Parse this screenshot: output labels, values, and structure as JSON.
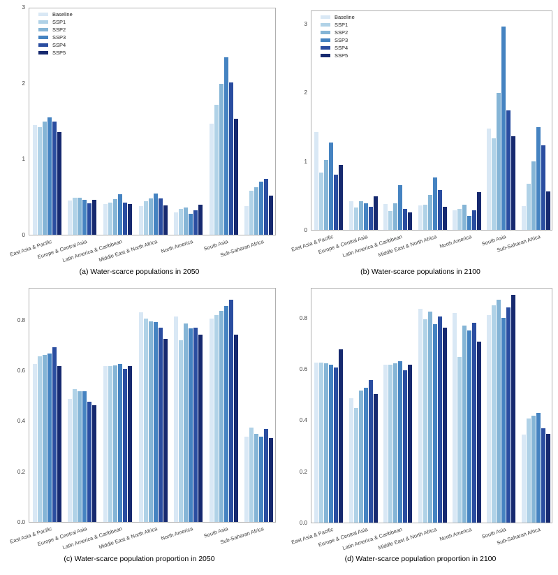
{
  "figure": {
    "background": "#ffffff",
    "axis_border_color": "#b0b0b0",
    "tick_text_color": "#3c3c3c"
  },
  "legend": {
    "position": "upper-left-inside",
    "items": [
      {
        "label": "Baseline",
        "color": "#d9e8f5"
      },
      {
        "label": "SSP1",
        "color": "#b0d2e7"
      },
      {
        "label": "SSP2",
        "color": "#85b5d6"
      },
      {
        "label": "SSP3",
        "color": "#4583c1"
      },
      {
        "label": "SSP4",
        "color": "#2a4da0"
      },
      {
        "label": "SSP5",
        "color": "#16296f"
      }
    ]
  },
  "chart_data": [
    {
      "type": "bar",
      "caption": "(a) Water-scarce populations in 2050",
      "title": "",
      "xlabel": "",
      "ylabel": "",
      "ylim": [
        0,
        3.0
      ],
      "yticks": [
        {
          "value": 0,
          "label": "0"
        },
        {
          "value": 1,
          "label": "1"
        },
        {
          "value": 2,
          "label": "2"
        },
        {
          "value": 3,
          "label": "3"
        }
      ],
      "grid": false,
      "legend_visible": true,
      "categories": [
        "East Asia & Pacific",
        "Europe & Central Asia",
        "Latin America & Caribbean",
        "Middle East & North Africa",
        "North America",
        "South Asia",
        "Sub-Saharan Africa"
      ],
      "series": [
        {
          "name": "Baseline",
          "color": "#d9e8f5",
          "values": [
            1.45,
            0.45,
            0.41,
            0.38,
            0.3,
            1.47,
            0.38
          ]
        },
        {
          "name": "SSP1",
          "color": "#b0d2e7",
          "values": [
            1.43,
            0.49,
            0.43,
            0.44,
            0.34,
            1.72,
            0.58
          ]
        },
        {
          "name": "SSP2",
          "color": "#85b5d6",
          "values": [
            1.5,
            0.49,
            0.47,
            0.48,
            0.36,
            2.0,
            0.63
          ]
        },
        {
          "name": "SSP3",
          "color": "#4583c1",
          "values": [
            1.56,
            0.46,
            0.54,
            0.55,
            0.28,
            2.35,
            0.7
          ]
        },
        {
          "name": "SSP4",
          "color": "#2a4da0",
          "values": [
            1.5,
            0.42,
            0.43,
            0.48,
            0.32,
            2.02,
            0.74
          ]
        },
        {
          "name": "SSP5",
          "color": "#16296f",
          "values": [
            1.36,
            0.46,
            0.41,
            0.39,
            0.4,
            1.54,
            0.52
          ]
        }
      ]
    },
    {
      "type": "bar",
      "caption": "(b) Water-scarce populations in 2100",
      "title": "",
      "xlabel": "",
      "ylabel": "",
      "ylim": [
        0,
        3.2
      ],
      "yticks": [
        {
          "value": 0,
          "label": "0"
        },
        {
          "value": 1,
          "label": "1"
        },
        {
          "value": 2,
          "label": "2"
        },
        {
          "value": 3,
          "label": "3"
        }
      ],
      "grid": false,
      "legend_visible": true,
      "categories": [
        "East Asia & Pacific",
        "Europe & Central Asia",
        "Latin America & Caribbean",
        "Middle East & North Africa",
        "North America",
        "South Asia",
        "Sub-Saharan Africa"
      ],
      "series": [
        {
          "name": "Baseline",
          "color": "#d9e8f5",
          "values": [
            1.43,
            0.42,
            0.38,
            0.36,
            0.29,
            1.48,
            0.35
          ]
        },
        {
          "name": "SSP1",
          "color": "#b0d2e7",
          "values": [
            0.84,
            0.33,
            0.28,
            0.37,
            0.31,
            1.34,
            0.67
          ]
        },
        {
          "name": "SSP2",
          "color": "#85b5d6",
          "values": [
            1.02,
            0.42,
            0.39,
            0.51,
            0.37,
            2.0,
            1.0
          ]
        },
        {
          "name": "SSP3",
          "color": "#4583c1",
          "values": [
            1.28,
            0.39,
            0.65,
            0.77,
            0.2,
            2.98,
            1.5
          ]
        },
        {
          "name": "SSP4",
          "color": "#2a4da0",
          "values": [
            0.81,
            0.34,
            0.31,
            0.58,
            0.29,
            1.75,
            1.24
          ]
        },
        {
          "name": "SSP5",
          "color": "#16296f",
          "values": [
            0.95,
            0.49,
            0.26,
            0.34,
            0.55,
            1.37,
            0.56
          ]
        }
      ]
    },
    {
      "type": "bar",
      "caption": "(c) Water-scarce population proportion in 2050",
      "title": "",
      "xlabel": "",
      "ylabel": "",
      "ylim": [
        0,
        0.93
      ],
      "yticks": [
        {
          "value": 0,
          "label": "0.0"
        },
        {
          "value": 0.2,
          "label": "0.2"
        },
        {
          "value": 0.4,
          "label": "0.4"
        },
        {
          "value": 0.6,
          "label": "0.6"
        },
        {
          "value": 0.8,
          "label": "0.8"
        }
      ],
      "grid": false,
      "legend_visible": false,
      "categories": [
        "East Asia & Pacific",
        "Europe & Central Asia",
        "Latin America & Caribbean",
        "Middle East & North Africa",
        "North America",
        "South Asia",
        "Sub-Saharan Africa"
      ],
      "series": [
        {
          "name": "Baseline",
          "color": "#d9e8f5",
          "values": [
            0.63,
            0.49,
            0.62,
            0.835,
            0.82,
            0.81,
            0.34
          ]
        },
        {
          "name": "SSP1",
          "color": "#b0d2e7",
          "values": [
            0.66,
            0.53,
            0.62,
            0.81,
            0.725,
            0.825,
            0.375
          ]
        },
        {
          "name": "SSP2",
          "color": "#85b5d6",
          "values": [
            0.665,
            0.52,
            0.625,
            0.8,
            0.79,
            0.84,
            0.35
          ]
        },
        {
          "name": "SSP3",
          "color": "#4583c1",
          "values": [
            0.67,
            0.52,
            0.63,
            0.795,
            0.77,
            0.86,
            0.34
          ]
        },
        {
          "name": "SSP4",
          "color": "#2a4da0",
          "values": [
            0.695,
            0.48,
            0.61,
            0.775,
            0.775,
            0.885,
            0.37
          ]
        },
        {
          "name": "SSP5",
          "color": "#16296f",
          "values": [
            0.62,
            0.465,
            0.62,
            0.73,
            0.745,
            0.745,
            0.335
          ]
        }
      ]
    },
    {
      "type": "bar",
      "caption": "(d) Water-scarce population proportion in 2100",
      "title": "",
      "xlabel": "",
      "ylabel": "",
      "ylim": [
        0,
        0.92
      ],
      "yticks": [
        {
          "value": 0,
          "label": "0.0"
        },
        {
          "value": 0.2,
          "label": "0.2"
        },
        {
          "value": 0.4,
          "label": "0.4"
        },
        {
          "value": 0.6,
          "label": "0.6"
        },
        {
          "value": 0.8,
          "label": "0.8"
        }
      ],
      "grid": false,
      "legend_visible": false,
      "categories": [
        "East Asia & Pacific",
        "Europe & Central Asia",
        "Latin America & Caribbean",
        "Middle East & North Africa",
        "North America",
        "South Asia",
        "Sub-Saharan Africa"
      ],
      "series": [
        {
          "name": "Baseline",
          "color": "#d9e8f5",
          "values": [
            0.63,
            0.49,
            0.62,
            0.84,
            0.825,
            0.815,
            0.345
          ]
        },
        {
          "name": "SSP1",
          "color": "#b0d2e7",
          "values": [
            0.63,
            0.45,
            0.62,
            0.8,
            0.65,
            0.855,
            0.41
          ]
        },
        {
          "name": "SSP2",
          "color": "#85b5d6",
          "values": [
            0.625,
            0.52,
            0.625,
            0.83,
            0.775,
            0.875,
            0.42
          ]
        },
        {
          "name": "SSP3",
          "color": "#4583c1",
          "values": [
            0.62,
            0.53,
            0.635,
            0.78,
            0.755,
            0.805,
            0.43
          ]
        },
        {
          "name": "SSP4",
          "color": "#2a4da0",
          "values": [
            0.61,
            0.56,
            0.6,
            0.81,
            0.785,
            0.845,
            0.37
          ]
        },
        {
          "name": "SSP5",
          "color": "#16296f",
          "values": [
            0.68,
            0.505,
            0.62,
            0.765,
            0.71,
            0.895,
            0.35
          ]
        }
      ]
    }
  ]
}
